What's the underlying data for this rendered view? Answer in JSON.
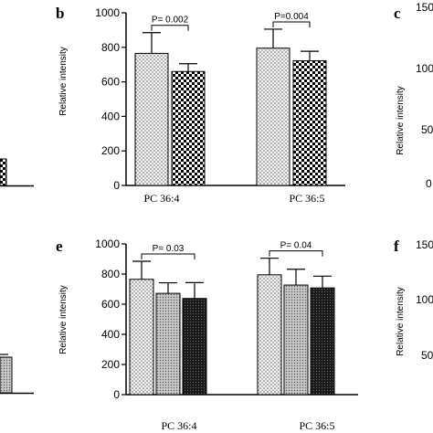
{
  "chart_data": [
    {
      "panel": "b",
      "type": "bar",
      "ylabel": "Relative intensity",
      "ylim": [
        0,
        1000
      ],
      "yticks": [
        "0",
        "200",
        "400",
        "600",
        "800",
        "1000"
      ],
      "categories": [
        "PC 36:4",
        "PC 36:5"
      ],
      "series": [
        {
          "pattern": "dots",
          "values": [
            765,
            795
          ],
          "errors": [
            120,
            110
          ]
        },
        {
          "pattern": "checker",
          "values": [
            660,
            722
          ],
          "errors": [
            45,
            55
          ]
        }
      ],
      "annotations": [
        {
          "text": "P= 0.002",
          "category": 0,
          "from": 0,
          "to": 1
        },
        {
          "text": "P=0.004",
          "category": 1,
          "from": 0,
          "to": 1
        }
      ]
    },
    {
      "panel": "e",
      "type": "bar",
      "ylabel": "Relative intensity",
      "ylim": [
        0,
        1000
      ],
      "yticks": [
        "0",
        "200",
        "400",
        "600",
        "800",
        "1000"
      ],
      "categories": [
        "PC 36:4",
        "PC 36:5"
      ],
      "series": [
        {
          "pattern": "dots",
          "values": [
            765,
            795
          ],
          "errors": [
            120,
            110
          ]
        },
        {
          "pattern": "grey",
          "values": [
            672,
            727
          ],
          "errors": [
            70,
            105
          ]
        },
        {
          "pattern": "black",
          "values": [
            638,
            708
          ],
          "errors": [
            105,
            78
          ]
        }
      ],
      "annotations": [
        {
          "text": "P= 0.03",
          "category": 0,
          "from": 0,
          "to": 2
        },
        {
          "text": "P= 0.04",
          "category": 1,
          "from": 0,
          "to": 2
        }
      ]
    },
    {
      "panel": "c",
      "type": "bar",
      "ylabel": "Relative intensity",
      "ytick_labels_visible": [
        "0",
        "50",
        "100",
        "150"
      ]
    },
    {
      "panel": "f",
      "type": "bar",
      "ylabel": "Relative intensity",
      "ytick_labels_visible": [
        "50",
        "100",
        "150"
      ]
    }
  ]
}
